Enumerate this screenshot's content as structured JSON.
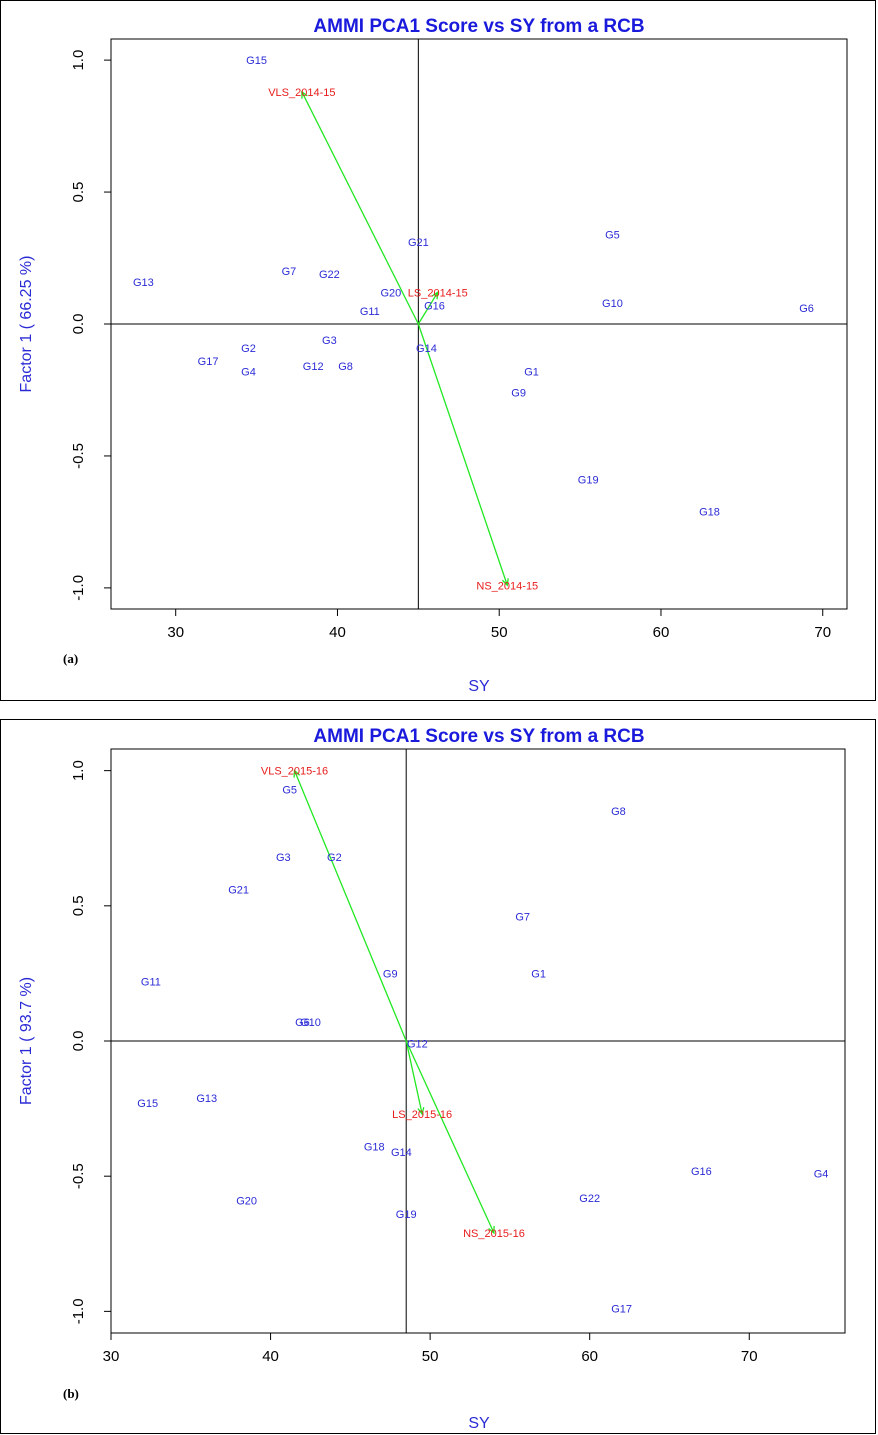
{
  "colors": {
    "title": "#1a1adc",
    "genotype": "#2b2bd6",
    "environment": "#e81c1c",
    "vector": "#22e822",
    "axis": "#000000"
  },
  "chart_data": [
    {
      "type": "scatter",
      "panel_tag": "(a)",
      "title": "AMMI PCA1 Score vs SY from a RCB",
      "xlabel": "SY",
      "ylabel": "Factor 1 ( 66.25 %)",
      "xlim": [
        26.0,
        71.5
      ],
      "ylim": [
        -1.08,
        1.08
      ],
      "xticks": [
        30,
        40,
        50,
        60,
        70
      ],
      "yticks": [
        -1.0,
        -0.5,
        0.0,
        0.5,
        1.0
      ],
      "ytick_labels": [
        "-1.0",
        "-0.5",
        "0.0",
        "0.5",
        "1.0"
      ],
      "reference_lines": {
        "x": 45.0,
        "y": 0.0
      },
      "genotypes": [
        {
          "name": "G15",
          "x": 35.0,
          "y": 1.0
        },
        {
          "name": "G5",
          "x": 57.0,
          "y": 0.34
        },
        {
          "name": "G21",
          "x": 45.0,
          "y": 0.31
        },
        {
          "name": "G7",
          "x": 37.0,
          "y": 0.2
        },
        {
          "name": "G22",
          "x": 39.5,
          "y": 0.19
        },
        {
          "name": "G13",
          "x": 28.0,
          "y": 0.16
        },
        {
          "name": "G20",
          "x": 43.3,
          "y": 0.12
        },
        {
          "name": "G10",
          "x": 57.0,
          "y": 0.08
        },
        {
          "name": "G16",
          "x": 46.0,
          "y": 0.07
        },
        {
          "name": "G6",
          "x": 69.0,
          "y": 0.06
        },
        {
          "name": "G11",
          "x": 42.0,
          "y": 0.05
        },
        {
          "name": "G3",
          "x": 39.5,
          "y": -0.06
        },
        {
          "name": "G2",
          "x": 34.5,
          "y": -0.09
        },
        {
          "name": "G14",
          "x": 45.5,
          "y": -0.09
        },
        {
          "name": "G17",
          "x": 32.0,
          "y": -0.14
        },
        {
          "name": "G12",
          "x": 38.5,
          "y": -0.16
        },
        {
          "name": "G8",
          "x": 40.5,
          "y": -0.16
        },
        {
          "name": "G4",
          "x": 34.5,
          "y": -0.18
        },
        {
          "name": "G1",
          "x": 52.0,
          "y": -0.18
        },
        {
          "name": "G9",
          "x": 51.2,
          "y": -0.26
        },
        {
          "name": "G19",
          "x": 55.5,
          "y": -0.59
        },
        {
          "name": "G18",
          "x": 63.0,
          "y": -0.71
        }
      ],
      "environments": [
        {
          "name": "VLS_2014-15",
          "x": 37.8,
          "y": 0.88
        },
        {
          "name": "LS_2014-15",
          "x": 46.2,
          "y": 0.12
        },
        {
          "name": "NS_2014-15",
          "x": 50.5,
          "y": -0.99
        }
      ]
    },
    {
      "type": "scatter",
      "panel_tag": "(b)",
      "title": "AMMI PCA1 Score vs SY from a RCB",
      "xlabel": "SY",
      "ylabel": "Factor 1 ( 93.7 %)",
      "xlim": [
        30.0,
        76.0
      ],
      "ylim": [
        -1.08,
        1.08
      ],
      "xticks": [
        30,
        40,
        50,
        60,
        70
      ],
      "yticks": [
        -1.0,
        -0.5,
        0.0,
        0.5,
        1.0
      ],
      "ytick_labels": [
        "-1.0",
        "-0.5",
        "0.0",
        "0.5",
        "1.0"
      ],
      "reference_lines": {
        "x": 48.5,
        "y": 0.0
      },
      "genotypes": [
        {
          "name": "G5",
          "x": 41.2,
          "y": 0.93
        },
        {
          "name": "G8",
          "x": 61.8,
          "y": 0.85
        },
        {
          "name": "G3",
          "x": 40.8,
          "y": 0.68
        },
        {
          "name": "G2",
          "x": 44.0,
          "y": 0.68
        },
        {
          "name": "G21",
          "x": 38.0,
          "y": 0.56
        },
        {
          "name": "G7",
          "x": 55.8,
          "y": 0.46
        },
        {
          "name": "G9",
          "x": 47.5,
          "y": 0.25
        },
        {
          "name": "G1",
          "x": 56.8,
          "y": 0.25
        },
        {
          "name": "G11",
          "x": 32.5,
          "y": 0.22
        },
        {
          "name": "G6",
          "x": 42.0,
          "y": 0.07
        },
        {
          "name": "G10",
          "x": 42.5,
          "y": 0.07
        },
        {
          "name": "G12",
          "x": 49.2,
          "y": -0.01
        },
        {
          "name": "G13",
          "x": 36.0,
          "y": -0.21
        },
        {
          "name": "G15",
          "x": 32.3,
          "y": -0.23
        },
        {
          "name": "G18",
          "x": 46.5,
          "y": -0.39
        },
        {
          "name": "G14",
          "x": 48.2,
          "y": -0.41
        },
        {
          "name": "G16",
          "x": 67.0,
          "y": -0.48
        },
        {
          "name": "G4",
          "x": 74.5,
          "y": -0.49
        },
        {
          "name": "G22",
          "x": 60.0,
          "y": -0.58
        },
        {
          "name": "G20",
          "x": 38.5,
          "y": -0.59
        },
        {
          "name": "G19",
          "x": 48.5,
          "y": -0.64
        },
        {
          "name": "G17",
          "x": 62.0,
          "y": -0.99
        }
      ],
      "environments": [
        {
          "name": "VLS_2015-16",
          "x": 41.5,
          "y": 1.0
        },
        {
          "name": "LS_2015-16",
          "x": 49.5,
          "y": -0.27
        },
        {
          "name": "NS_2015-16",
          "x": 54.0,
          "y": -0.71
        }
      ]
    }
  ]
}
